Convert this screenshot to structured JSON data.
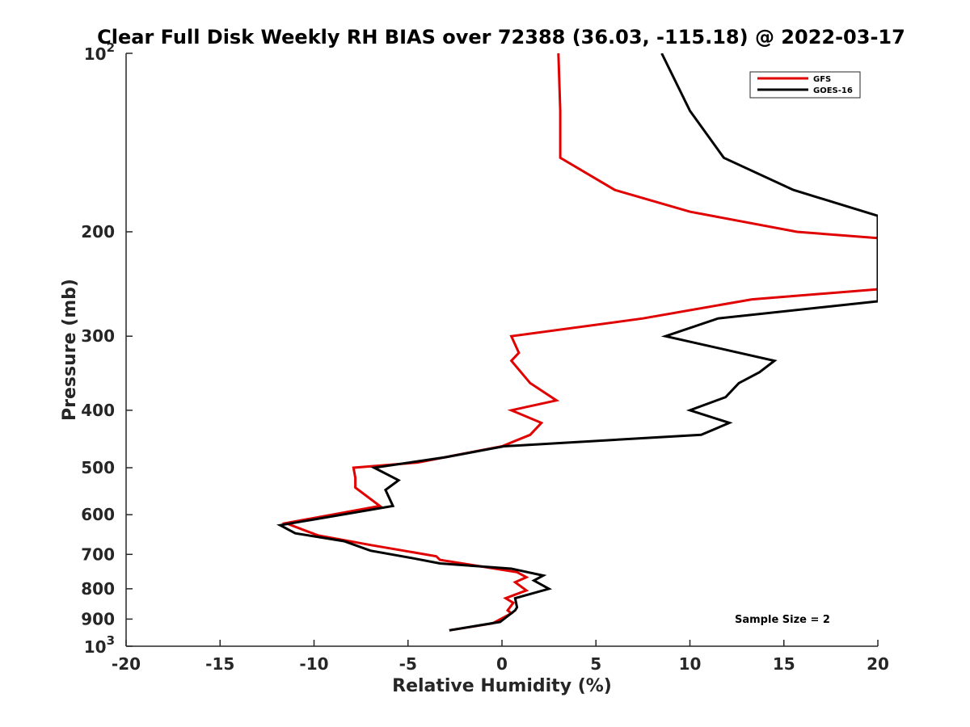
{
  "chart_data": {
    "type": "line",
    "title": "Clear Full Disk Weekly RH BIAS over 72388 (36.03, -115.18) @ 2022-03-17",
    "xlabel": "Relative Humidity (%)",
    "ylabel": "Pressure (mb)",
    "xlim": [
      -20,
      20
    ],
    "ylim": [
      100,
      1000
    ],
    "y_scale": "log",
    "y_reversed": true,
    "grid": false,
    "legend_position": "top-right",
    "x_ticks": [
      "-20",
      "-15",
      "-10",
      "-5",
      "0",
      "5",
      "10",
      "15",
      "20"
    ],
    "y_ticks": [
      {
        "value": 100,
        "base": "10",
        "exp": "2"
      },
      {
        "value": 200,
        "label": "200"
      },
      {
        "value": 300,
        "label": "300"
      },
      {
        "value": 400,
        "label": "400"
      },
      {
        "value": 500,
        "label": "500"
      },
      {
        "value": 600,
        "label": "600"
      },
      {
        "value": 700,
        "label": "700"
      },
      {
        "value": 800,
        "label": "800"
      },
      {
        "value": 900,
        "label": "900"
      },
      {
        "value": 1000,
        "base": "10",
        "exp": "3"
      }
    ],
    "annotation": "Sample Size = 2",
    "series": [
      {
        "name": "GFS",
        "color": "#e00000",
        "points": [
          [
            3.0,
            100
          ],
          [
            3.1,
            125
          ],
          [
            3.1,
            150
          ],
          [
            6.0,
            170
          ],
          [
            10.0,
            185
          ],
          [
            15.7,
            200
          ],
          [
            20.0,
            205
          ],
          [
            20.0,
            250
          ],
          [
            13.3,
            260
          ],
          [
            7.5,
            280
          ],
          [
            0.5,
            300
          ],
          [
            0.9,
            320
          ],
          [
            0.5,
            330
          ],
          [
            1.5,
            360
          ],
          [
            2.9,
            385
          ],
          [
            0.5,
            400
          ],
          [
            2.1,
            420
          ],
          [
            1.5,
            440
          ],
          [
            0.0,
            460
          ],
          [
            -4.5,
            490
          ],
          [
            -7.9,
            500
          ],
          [
            -7.8,
            520
          ],
          [
            -7.8,
            540
          ],
          [
            -6.5,
            580
          ],
          [
            -11.5,
            620
          ],
          [
            -9.8,
            650
          ],
          [
            -7.0,
            675
          ],
          [
            -3.5,
            705
          ],
          [
            -3.3,
            715
          ],
          [
            0.8,
            750
          ],
          [
            1.3,
            765
          ],
          [
            0.7,
            780
          ],
          [
            1.3,
            805
          ],
          [
            0.2,
            830
          ],
          [
            0.6,
            845
          ],
          [
            0.3,
            870
          ],
          [
            0.5,
            880
          ],
          [
            -0.5,
            915
          ],
          [
            -2.8,
            940
          ]
        ]
      },
      {
        "name": "GOES-16",
        "color": "#000000",
        "points": [
          [
            8.5,
            100
          ],
          [
            10.0,
            125
          ],
          [
            11.8,
            150
          ],
          [
            15.5,
            170
          ],
          [
            20.0,
            188
          ],
          [
            20.0,
            262
          ],
          [
            11.5,
            280
          ],
          [
            8.7,
            300
          ],
          [
            14.5,
            330
          ],
          [
            13.7,
            345
          ],
          [
            12.6,
            360
          ],
          [
            11.9,
            380
          ],
          [
            10.0,
            400
          ],
          [
            12.1,
            420
          ],
          [
            10.6,
            440
          ],
          [
            0.1,
            460
          ],
          [
            -3.0,
            480
          ],
          [
            -6.8,
            500
          ],
          [
            -5.5,
            525
          ],
          [
            -6.2,
            545
          ],
          [
            -5.8,
            580
          ],
          [
            -11.8,
            625
          ],
          [
            -11.0,
            645
          ],
          [
            -8.4,
            665
          ],
          [
            -7.0,
            690
          ],
          [
            -4.8,
            710
          ],
          [
            -3.3,
            725
          ],
          [
            0.5,
            740
          ],
          [
            2.2,
            760
          ],
          [
            1.7,
            775
          ],
          [
            2.5,
            800
          ],
          [
            0.7,
            830
          ],
          [
            0.8,
            860
          ],
          [
            0.7,
            870
          ],
          [
            -0.1,
            910
          ],
          [
            -2.8,
            940
          ]
        ]
      }
    ]
  }
}
